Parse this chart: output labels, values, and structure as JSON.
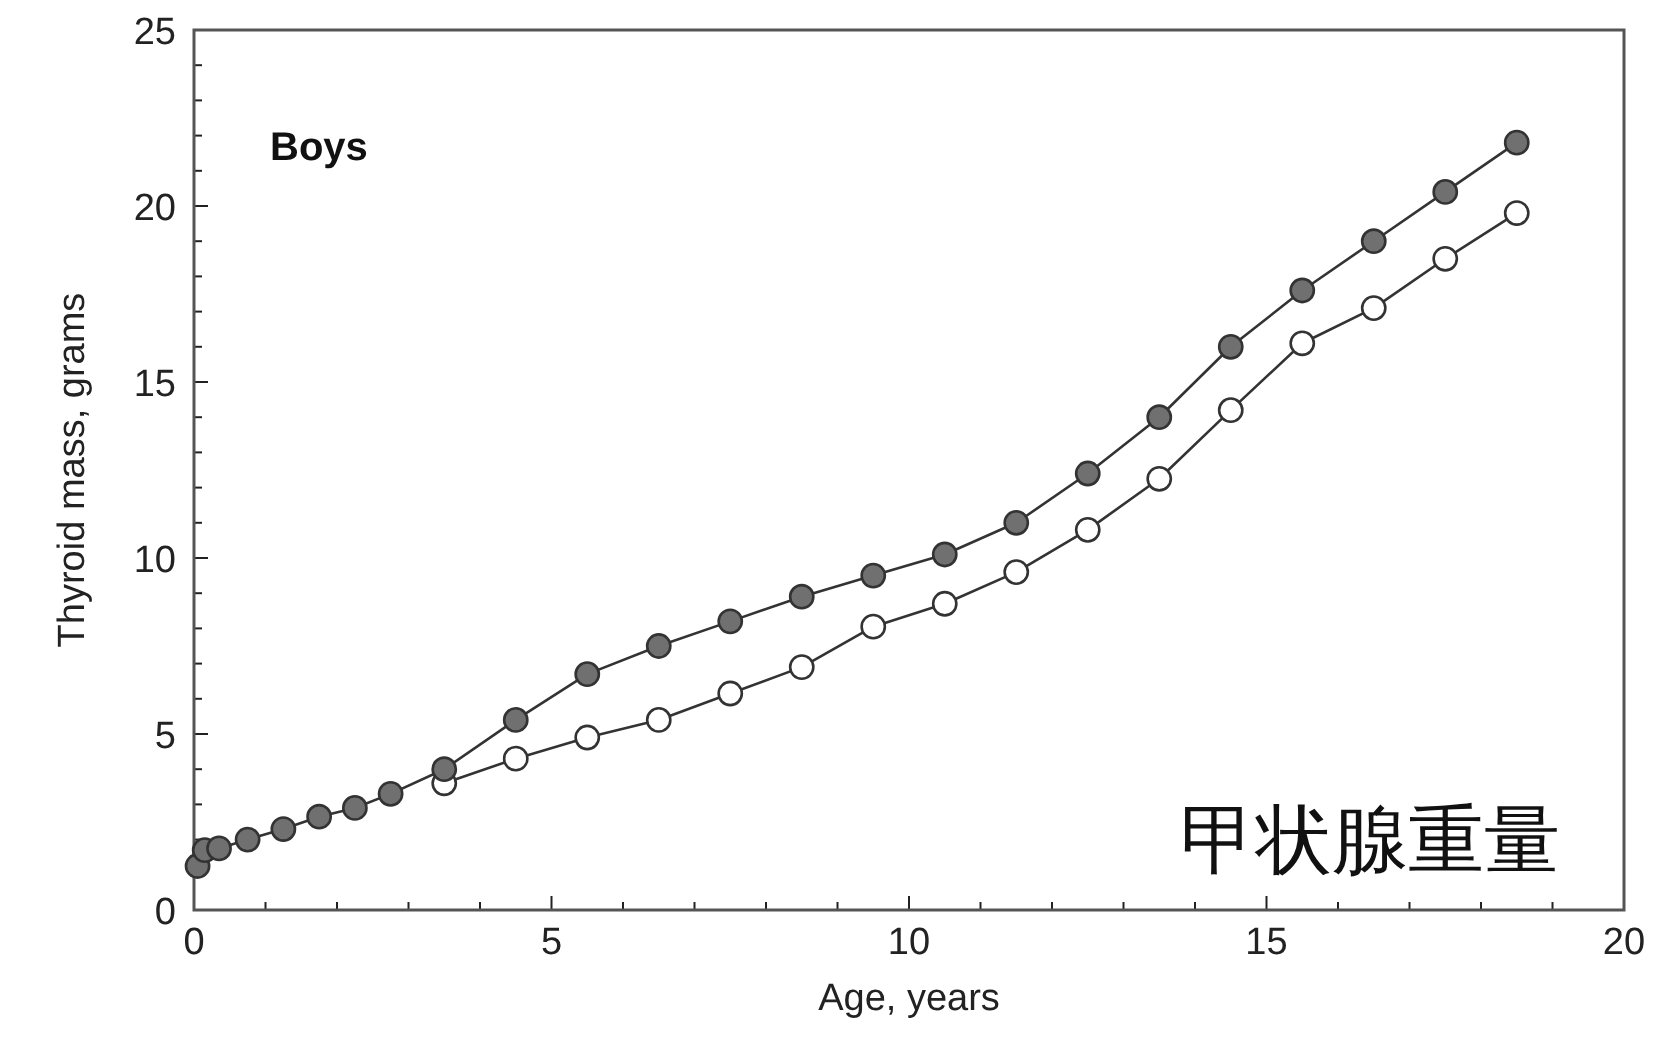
{
  "chart_data": {
    "type": "line",
    "title": "Boys",
    "xlabel": "Age, years",
    "ylabel": "Thyroid mass, grams",
    "annotations": [
      "甲状腺重量"
    ],
    "xlim": [
      0,
      20
    ],
    "ylim": [
      0,
      25
    ],
    "xticks": [
      0,
      {
        "value": 1,
        "label": null
      },
      {
        "value": 2,
        "label": null
      },
      {
        "value": 3,
        "label": null
      },
      {
        "value": 4,
        "label": null
      },
      5,
      {
        "value": 6,
        "label": null
      },
      {
        "value": 7,
        "label": null
      },
      {
        "value": 8,
        "label": null
      },
      {
        "value": 9,
        "label": null
      },
      10,
      {
        "value": 11,
        "label": null
      },
      {
        "value": 12,
        "label": null
      },
      {
        "value": 13,
        "label": null
      },
      {
        "value": 14,
        "label": null
      },
      15,
      {
        "value": 16,
        "label": null
      },
      {
        "value": 17,
        "label": null
      },
      {
        "value": 18,
        "label": null
      },
      {
        "value": 19,
        "label": null
      },
      20
    ],
    "yticks": [
      0,
      {
        "value": 1,
        "label": null
      },
      {
        "value": 2,
        "label": null
      },
      {
        "value": 3,
        "label": null
      },
      {
        "value": 4,
        "label": null
      },
      5,
      {
        "value": 6,
        "label": null
      },
      {
        "value": 7,
        "label": null
      },
      {
        "value": 8,
        "label": null
      },
      {
        "value": 9,
        "label": null
      },
      10,
      {
        "value": 11,
        "label": null
      },
      {
        "value": 12,
        "label": null
      },
      {
        "value": 13,
        "label": null
      },
      {
        "value": 14,
        "label": null
      },
      15,
      {
        "value": 16,
        "label": null
      },
      {
        "value": 17,
        "label": null
      },
      {
        "value": 18,
        "label": null
      },
      {
        "value": 19,
        "label": null
      },
      20,
      {
        "value": 21,
        "label": null
      },
      {
        "value": 22,
        "label": null
      },
      {
        "value": 23,
        "label": null
      },
      {
        "value": 24,
        "label": null
      },
      25
    ],
    "grid": false,
    "marker": "circle",
    "line_style": "solid",
    "series": [
      {
        "color": "#ffffff",
        "x": [
          3.5,
          4.5,
          5.5,
          6.5,
          7.5,
          8.5,
          9.5,
          10.5,
          11.5,
          12.5,
          13.5,
          14.5,
          15.5,
          16.5,
          17.5,
          18.5
        ],
        "values": [
          3.6,
          4.3,
          4.9,
          5.4,
          6.15,
          6.9,
          8.05,
          8.7,
          9.6,
          10.8,
          12.25,
          14.2,
          16.1,
          17.1,
          18.5,
          19.8
        ]
      },
      {
        "color": "#707070",
        "x": [
          0.05,
          0.15,
          0.35,
          0.75,
          1.25,
          1.75,
          2.25,
          2.75,
          3.5,
          4.5,
          5.5,
          6.5,
          7.5,
          8.5,
          9.5,
          10.5,
          11.5,
          12.5,
          13.5,
          14.5,
          15.5,
          16.5,
          17.5,
          18.5
        ],
        "values": [
          1.25,
          1.7,
          1.75,
          2.0,
          2.3,
          2.65,
          2.9,
          3.3,
          4.0,
          5.4,
          6.7,
          7.5,
          8.2,
          8.9,
          9.5,
          10.1,
          11.0,
          12.4,
          14.0,
          16.0,
          17.6,
          19.0,
          20.4,
          21.8
        ]
      }
    ]
  }
}
